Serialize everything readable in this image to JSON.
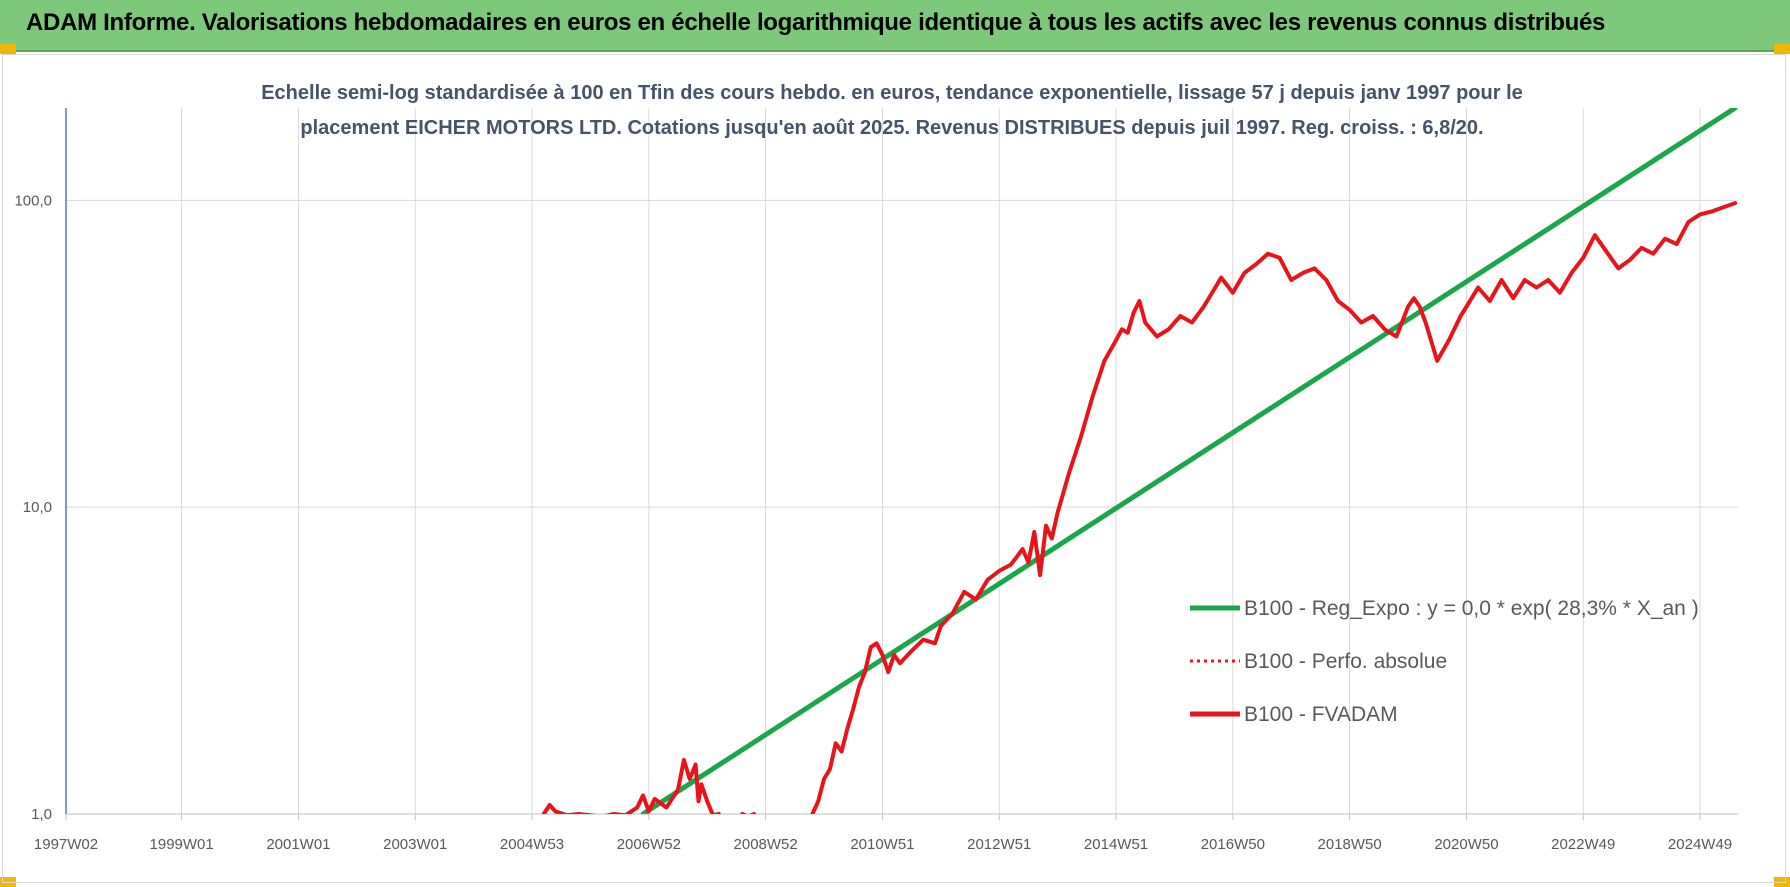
{
  "banner": {
    "title": "ADAM Informe. Valorisations hebdomadaires en euros en échelle logarithmique identique à tous les actifs avec les revenus connus distribués"
  },
  "colors": {
    "banner_bg": "#7dc87a",
    "trend": "#1aa64a",
    "fvadam": "#e8141b",
    "perfo": "#e8141b",
    "grid": "#d9d9d9"
  },
  "chart_data": {
    "type": "line",
    "title": [
      "Echelle semi-log standardisée à 100 en Tfin des cours hebdo. en euros, tendance exponentielle, lissage 57 j depuis janv 1997 pour le",
      "placement EICHER MOTORS LTD. Cotations jusqu'en août 2025. Revenus DISTRIBUES depuis juil 1997. Reg. croiss. : 6,8/20."
    ],
    "y_scale": "log",
    "ylim": [
      1,
      200
    ],
    "y_ticks": [
      {
        "value": 1,
        "label": "1,0"
      },
      {
        "value": 10,
        "label": "10,0"
      },
      {
        "value": 100,
        "label": "100,0"
      }
    ],
    "xlim": [
      1997.02,
      2025.65
    ],
    "x_ticks": [
      {
        "value": 1997.02,
        "label": "1997W02"
      },
      {
        "value": 1999.0,
        "label": "1999W01"
      },
      {
        "value": 2001.0,
        "label": "2001W01"
      },
      {
        "value": 2003.0,
        "label": "2003W01"
      },
      {
        "value": 2005.0,
        "label": "2004W53"
      },
      {
        "value": 2007.0,
        "label": "2006W52"
      },
      {
        "value": 2009.0,
        "label": "2008W52"
      },
      {
        "value": 2011.0,
        "label": "2010W51"
      },
      {
        "value": 2013.0,
        "label": "2012W51"
      },
      {
        "value": 2015.0,
        "label": "2014W51"
      },
      {
        "value": 2017.0,
        "label": "2016W50"
      },
      {
        "value": 2019.0,
        "label": "2018W50"
      },
      {
        "value": 2021.0,
        "label": "2020W50"
      },
      {
        "value": 2023.0,
        "label": "2022W49"
      },
      {
        "value": 2025.0,
        "label": "2024W49"
      }
    ],
    "grid": true,
    "legend_position": "bottom-right",
    "series": [
      {
        "name": "B100 - Reg_Expo : y = 0,0 * exp( 28,3% *  X_an )",
        "style": "solid",
        "color": "#1aa64a",
        "x": [
          2006.9,
          2025.6
        ],
        "y": [
          1.0,
          200.0
        ]
      },
      {
        "name": "B100 - Perfo. absolue",
        "style": "dotted",
        "color": "#e8141b",
        "x": [],
        "y": []
      },
      {
        "name": "B100 - FVADAM",
        "style": "solid",
        "color": "#e8141b",
        "x": [
          2005.2,
          2005.3,
          2005.4,
          2005.6,
          2005.8,
          2006.0,
          2006.2,
          2006.4,
          2006.6,
          2006.8,
          2006.9,
          2007.0,
          2007.1,
          2007.3,
          2007.5,
          2007.6,
          2007.7,
          2007.8,
          2007.85,
          2007.9,
          2008.0,
          2008.1,
          2008.2,
          null,
          2008.6,
          2008.7,
          2008.8,
          null,
          2009.8,
          2009.9,
          2010.0,
          2010.1,
          2010.2,
          2010.3,
          2010.4,
          2010.5,
          2010.6,
          2010.7,
          2010.8,
          2010.9,
          2011.0,
          2011.1,
          2011.2,
          2011.3,
          2011.5,
          2011.7,
          2011.9,
          2012.0,
          2012.2,
          2012.4,
          2012.6,
          2012.8,
          2013.0,
          2013.2,
          2013.4,
          2013.5,
          2013.6,
          2013.7,
          2013.8,
          2013.9,
          2014.0,
          2014.2,
          2014.4,
          2014.6,
          2014.8,
          2015.0,
          2015.1,
          2015.2,
          2015.3,
          2015.4,
          2015.5,
          2015.7,
          2015.9,
          2016.1,
          2016.3,
          2016.5,
          2016.7,
          2016.8,
          2017.0,
          2017.2,
          2017.4,
          2017.6,
          2017.8,
          2018.0,
          2018.2,
          2018.4,
          2018.6,
          2018.8,
          2019.0,
          2019.2,
          2019.4,
          2019.6,
          2019.8,
          2020.0,
          2020.1,
          2020.2,
          2020.3,
          2020.5,
          2020.7,
          2020.9,
          2021.0,
          2021.2,
          2021.4,
          2021.6,
          2021.8,
          2022.0,
          2022.2,
          2022.4,
          2022.6,
          2022.8,
          2023.0,
          2023.2,
          2023.4,
          2023.6,
          2023.8,
          2024.0,
          2024.2,
          2024.4,
          2024.6,
          2024.8,
          2025.0,
          2025.2,
          2025.4,
          2025.6
        ],
        "y": [
          1.0,
          1.07,
          1.02,
          0.99,
          1.0,
          0.99,
          0.98,
          1.0,
          0.99,
          1.05,
          1.15,
          1.02,
          1.12,
          1.05,
          1.2,
          1.5,
          1.3,
          1.45,
          1.1,
          1.25,
          1.1,
          0.99,
          1.0,
          null,
          1.0,
          0.98,
          1.0,
          null,
          1.0,
          1.1,
          1.3,
          1.4,
          1.7,
          1.6,
          1.9,
          2.2,
          2.6,
          2.9,
          3.5,
          3.6,
          3.3,
          2.9,
          3.3,
          3.1,
          3.4,
          3.7,
          3.6,
          4.1,
          4.5,
          5.3,
          5.0,
          5.8,
          6.2,
          6.5,
          7.3,
          6.6,
          8.3,
          6.0,
          8.7,
          7.9,
          9.6,
          13.0,
          17.0,
          23.0,
          30.0,
          35.0,
          38.0,
          37.0,
          43.0,
          47.0,
          40.0,
          36.0,
          38.0,
          42.0,
          40.0,
          45.0,
          52.0,
          56.0,
          50.0,
          58.0,
          62.0,
          67.0,
          65.0,
          55.0,
          58.0,
          60.0,
          55.0,
          47.0,
          44.0,
          40.0,
          42.0,
          38.0,
          36.0,
          45.0,
          48.0,
          45.0,
          40.0,
          30.0,
          35.0,
          42.0,
          45.0,
          52.0,
          47.0,
          55.0,
          48.0,
          55.0,
          52.0,
          55.0,
          50.0,
          58.0,
          65.0,
          77.0,
          68.0,
          60.0,
          64.0,
          70.0,
          67.0,
          75.0,
          72.0,
          85.0,
          90.0,
          92.0,
          95.0,
          98.0
        ]
      }
    ]
  }
}
